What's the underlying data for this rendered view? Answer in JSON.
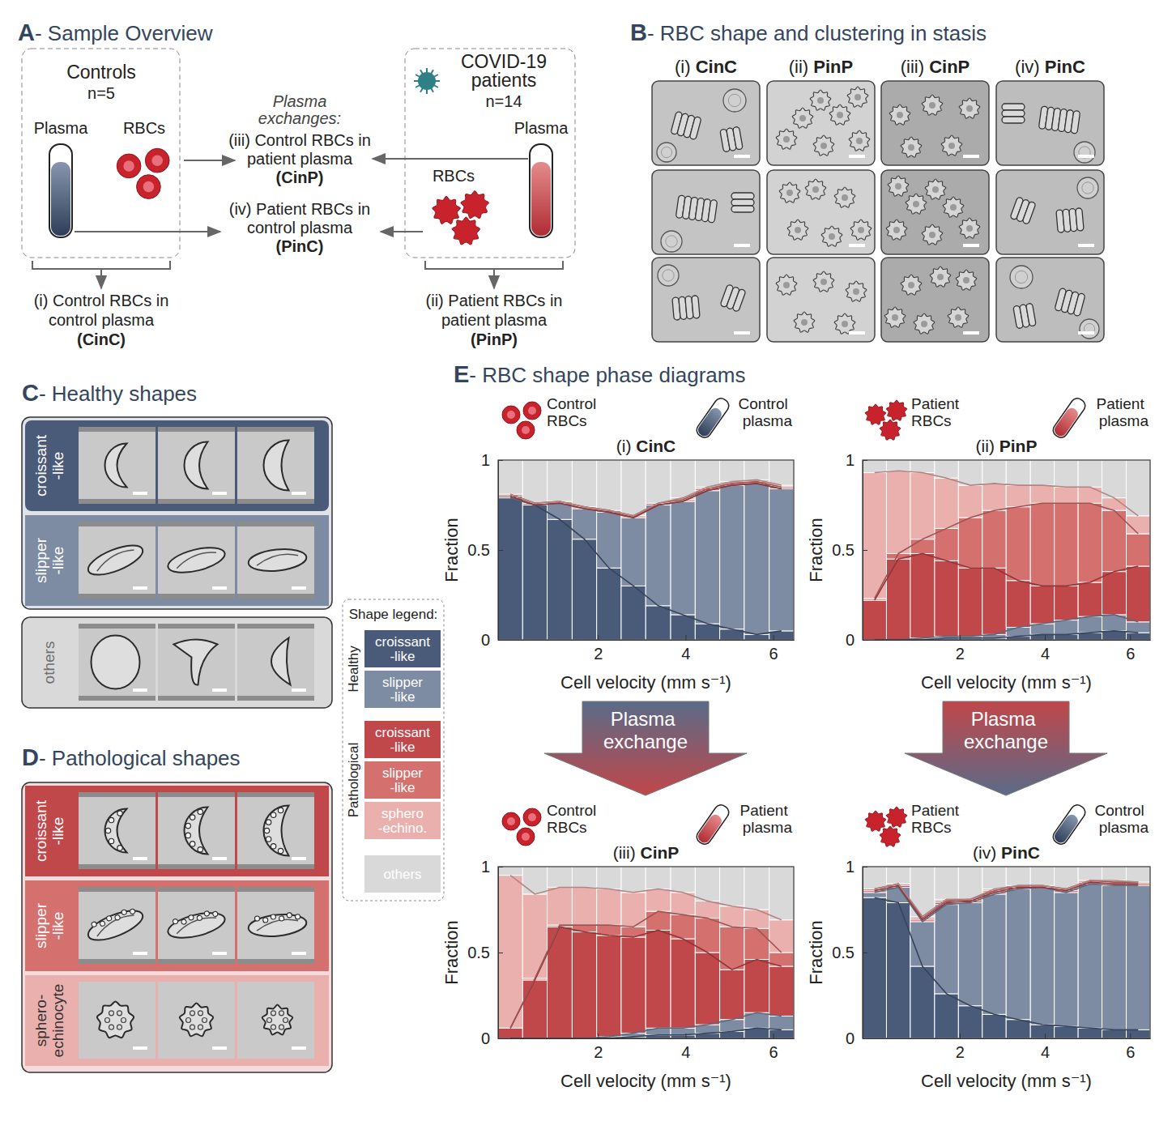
{
  "figure": {
    "panel_a": {
      "title": "A- Sample Overview",
      "controls": {
        "title": "Controls",
        "n": "n=5",
        "plasma": "Plasma",
        "rbcs": "RBCs"
      },
      "patients": {
        "title_lines": [
          "COVID-19",
          "patients"
        ],
        "n": "n=14",
        "plasma": "Plasma",
        "rbcs": "RBCs"
      },
      "exchange_lines": [
        "Plasma",
        "exchanges:"
      ],
      "cinp_lines": [
        "(iii) Control RBCs in",
        "patient plasma",
        "(CinP)"
      ],
      "pinc_lines": [
        "(iv) Patient RBCs in",
        "control plasma",
        "(PinC)"
      ],
      "cinc_lines": [
        "(i) Control RBCs in",
        "control plasma",
        "(CinC)"
      ],
      "pinp_lines": [
        "(ii) Patient RBCs in",
        "patient plasma",
        "(PinP)"
      ]
    },
    "panel_b": {
      "title": "B- RBC shape and clustering in stasis",
      "columns": [
        "(i) CinC",
        "(ii) PinP",
        "(iii) CinP",
        "(iv) PinC"
      ]
    },
    "panel_c": {
      "title": "C- Healthy shapes",
      "rows": [
        [
          "croissant",
          "-like"
        ],
        [
          "slipper",
          "-like"
        ],
        [
          "others"
        ]
      ]
    },
    "panel_d": {
      "title": "D- Pathological shapes",
      "rows": [
        [
          "croissant",
          "-like"
        ],
        [
          "slipper",
          "-like"
        ],
        [
          "sphero-",
          "echinocyte"
        ]
      ]
    },
    "legend": {
      "title": "Shape legend:",
      "groups": [
        {
          "label": "Healthy",
          "items": [
            {
              "lines": [
                "croissant",
                "-like"
              ],
              "color": "#4a5b7a"
            },
            {
              "lines": [
                "slipper",
                "-like"
              ],
              "color": "#7d8ba3"
            }
          ]
        },
        {
          "label": "Pathological",
          "items": [
            {
              "lines": [
                "croissant",
                "-like"
              ],
              "color": "#c0474a"
            },
            {
              "lines": [
                "slipper",
                "-like"
              ],
              "color": "#d4706e"
            },
            {
              "lines": [
                "sphero",
                "-echino."
              ],
              "color": "#eab0ad"
            }
          ]
        }
      ],
      "others": {
        "lines": [
          "others"
        ],
        "color": "#d9d9d9"
      }
    },
    "panel_e": {
      "title": "E- RBC shape phase diagrams",
      "arrow_text": "Plasma exchange"
    }
  },
  "chart_data": [
    {
      "type": "bar",
      "stacked": true,
      "title": "(i) CinC",
      "annotations": [
        "Control RBCs",
        "Control plasma"
      ],
      "x_label": "Cell velocity (mm s⁻¹)",
      "y_label": "Fraction",
      "bins": [
        -0.28,
        0.28,
        0.84,
        1.41,
        1.97,
        2.53,
        3.09,
        3.66,
        4.22,
        4.78,
        5.34,
        5.91,
        6.47
      ],
      "xlim": [
        -0.28,
        6.47
      ],
      "xticks": [
        2,
        4,
        6
      ],
      "ylim": [
        0,
        1
      ],
      "yticks": [
        0,
        0.5,
        1
      ],
      "series": [
        {
          "color": "#4a5b7a",
          "values": [
            0.79,
            0.75,
            0.67,
            0.56,
            0.4,
            0.3,
            0.19,
            0.14,
            0.09,
            0.06,
            0.03,
            0.05
          ]
        },
        {
          "color": "#7d8ba3",
          "values": [
            0.0,
            0.0,
            0.09,
            0.17,
            0.31,
            0.38,
            0.56,
            0.63,
            0.74,
            0.8,
            0.84,
            0.79
          ]
        },
        {
          "color": "#c0474a",
          "values": [
            0.01,
            0.0,
            0.0,
            0.0,
            0.0,
            0.0,
            0.0,
            0.0,
            0.0,
            0.0,
            0.0,
            0.0
          ]
        },
        {
          "color": "#d4706e",
          "values": [
            0.01,
            0.01,
            0.01,
            0.01,
            0.01,
            0.01,
            0.01,
            0.01,
            0.01,
            0.01,
            0.01,
            0.01
          ]
        },
        {
          "color": "#eab0ad",
          "values": [
            0.0,
            0.0,
            0.0,
            0.0,
            0.0,
            0.0,
            0.0,
            0.01,
            0.01,
            0.01,
            0.01,
            0.01
          ]
        },
        {
          "color": "#d9d9d9",
          "values": [
            0.19,
            0.24,
            0.23,
            0.26,
            0.28,
            0.31,
            0.24,
            0.21,
            0.15,
            0.12,
            0.11,
            0.14
          ]
        }
      ]
    },
    {
      "type": "bar",
      "stacked": true,
      "title": "(ii) PinP",
      "annotations": [
        "Patient RBCs",
        "Patient plasma"
      ],
      "x_label": "Cell velocity (mm s⁻¹)",
      "y_label": "Fraction",
      "bins": [
        -0.28,
        0.28,
        0.84,
        1.41,
        1.97,
        2.53,
        3.09,
        3.66,
        4.22,
        4.78,
        5.34,
        5.91,
        6.47
      ],
      "xlim": [
        -0.28,
        6.47
      ],
      "xticks": [
        2,
        4,
        6
      ],
      "ylim": [
        0,
        1
      ],
      "yticks": [
        0,
        0.5,
        1
      ],
      "series": [
        {
          "color": "#4a5b7a",
          "values": [
            0.0,
            0.0,
            0.0,
            0.01,
            0.01,
            0.01,
            0.02,
            0.03,
            0.03,
            0.04,
            0.05,
            0.04
          ]
        },
        {
          "color": "#7d8ba3",
          "values": [
            0.0,
            0.0,
            0.01,
            0.01,
            0.01,
            0.02,
            0.05,
            0.06,
            0.08,
            0.09,
            0.09,
            0.06
          ]
        },
        {
          "color": "#c0474a",
          "values": [
            0.22,
            0.45,
            0.47,
            0.42,
            0.38,
            0.37,
            0.26,
            0.21,
            0.19,
            0.19,
            0.24,
            0.31
          ]
        },
        {
          "color": "#d4706e",
          "values": [
            0.01,
            0.03,
            0.08,
            0.18,
            0.28,
            0.32,
            0.41,
            0.46,
            0.46,
            0.44,
            0.34,
            0.18
          ]
        },
        {
          "color": "#eab0ad",
          "values": [
            0.7,
            0.46,
            0.37,
            0.28,
            0.18,
            0.15,
            0.12,
            0.1,
            0.09,
            0.09,
            0.07,
            0.1
          ]
        },
        {
          "color": "#d9d9d9",
          "values": [
            0.07,
            0.06,
            0.07,
            0.1,
            0.14,
            0.13,
            0.14,
            0.14,
            0.15,
            0.15,
            0.21,
            0.31
          ]
        }
      ]
    },
    {
      "type": "bar",
      "stacked": true,
      "title": "(iii) CinP",
      "annotations": [
        "Control RBCs",
        "Patient plasma"
      ],
      "x_label": "Cell velocity (mm s⁻¹)",
      "y_label": "Fraction",
      "bins": [
        -0.28,
        0.28,
        0.84,
        1.41,
        1.97,
        2.53,
        3.09,
        3.66,
        4.22,
        4.78,
        5.34,
        5.91,
        6.47
      ],
      "xlim": [
        -0.28,
        6.47
      ],
      "xticks": [
        2,
        4,
        6
      ],
      "ylim": [
        0,
        1
      ],
      "yticks": [
        0,
        0.5,
        1
      ],
      "series": [
        {
          "color": "#4a5b7a",
          "values": [
            0.0,
            0.0,
            0.0,
            0.0,
            0.0,
            0.01,
            0.02,
            0.02,
            0.03,
            0.04,
            0.06,
            0.05
          ]
        },
        {
          "color": "#7d8ba3",
          "values": [
            0.0,
            0.0,
            0.0,
            0.0,
            0.01,
            0.02,
            0.04,
            0.04,
            0.05,
            0.07,
            0.09,
            0.08
          ]
        },
        {
          "color": "#c0474a",
          "values": [
            0.06,
            0.34,
            0.65,
            0.62,
            0.59,
            0.56,
            0.57,
            0.52,
            0.42,
            0.29,
            0.31,
            0.29
          ]
        },
        {
          "color": "#d4706e",
          "values": [
            0.0,
            0.01,
            0.01,
            0.04,
            0.06,
            0.06,
            0.11,
            0.14,
            0.2,
            0.25,
            0.18,
            0.08
          ]
        },
        {
          "color": "#eab0ad",
          "values": [
            0.89,
            0.49,
            0.22,
            0.22,
            0.21,
            0.2,
            0.13,
            0.13,
            0.1,
            0.12,
            0.11,
            0.19
          ]
        },
        {
          "color": "#d9d9d9",
          "values": [
            0.05,
            0.16,
            0.12,
            0.12,
            0.13,
            0.15,
            0.13,
            0.15,
            0.2,
            0.23,
            0.25,
            0.31
          ]
        }
      ]
    },
    {
      "type": "bar",
      "stacked": true,
      "title": "(iv) PinC",
      "annotations": [
        "Patient RBCs",
        "Control plasma"
      ],
      "x_label": "Cell velocity (mm s⁻¹)",
      "y_label": "Fraction",
      "bins": [
        -0.28,
        0.28,
        0.84,
        1.41,
        1.97,
        2.53,
        3.09,
        3.66,
        4.22,
        4.78,
        5.34,
        5.91,
        6.47
      ],
      "xlim": [
        -0.28,
        6.47
      ],
      "xticks": [
        2,
        4,
        6
      ],
      "ylim": [
        0,
        1
      ],
      "yticks": [
        0,
        0.5,
        1
      ],
      "series": [
        {
          "color": "#4a5b7a",
          "values": [
            0.82,
            0.79,
            0.42,
            0.26,
            0.19,
            0.14,
            0.11,
            0.08,
            0.07,
            0.06,
            0.05,
            0.05
          ]
        },
        {
          "color": "#7d8ba3",
          "values": [
            0.03,
            0.09,
            0.26,
            0.52,
            0.6,
            0.7,
            0.76,
            0.8,
            0.78,
            0.84,
            0.84,
            0.84
          ]
        },
        {
          "color": "#c0474a",
          "values": [
            0.01,
            0.01,
            0.01,
            0.01,
            0.01,
            0.01,
            0.01,
            0.0,
            0.01,
            0.01,
            0.01,
            0.01
          ]
        },
        {
          "color": "#d4706e",
          "values": [
            0.01,
            0.01,
            0.01,
            0.01,
            0.01,
            0.01,
            0.01,
            0.01,
            0.01,
            0.01,
            0.01,
            0.01
          ]
        },
        {
          "color": "#eab0ad",
          "values": [
            0.0,
            0.0,
            0.01,
            0.01,
            0.0,
            0.01,
            0.0,
            0.0,
            0.0,
            0.0,
            0.01,
            0.0
          ]
        },
        {
          "color": "#d9d9d9",
          "values": [
            0.13,
            0.1,
            0.29,
            0.19,
            0.19,
            0.13,
            0.11,
            0.11,
            0.13,
            0.08,
            0.08,
            0.09
          ]
        }
      ]
    }
  ]
}
